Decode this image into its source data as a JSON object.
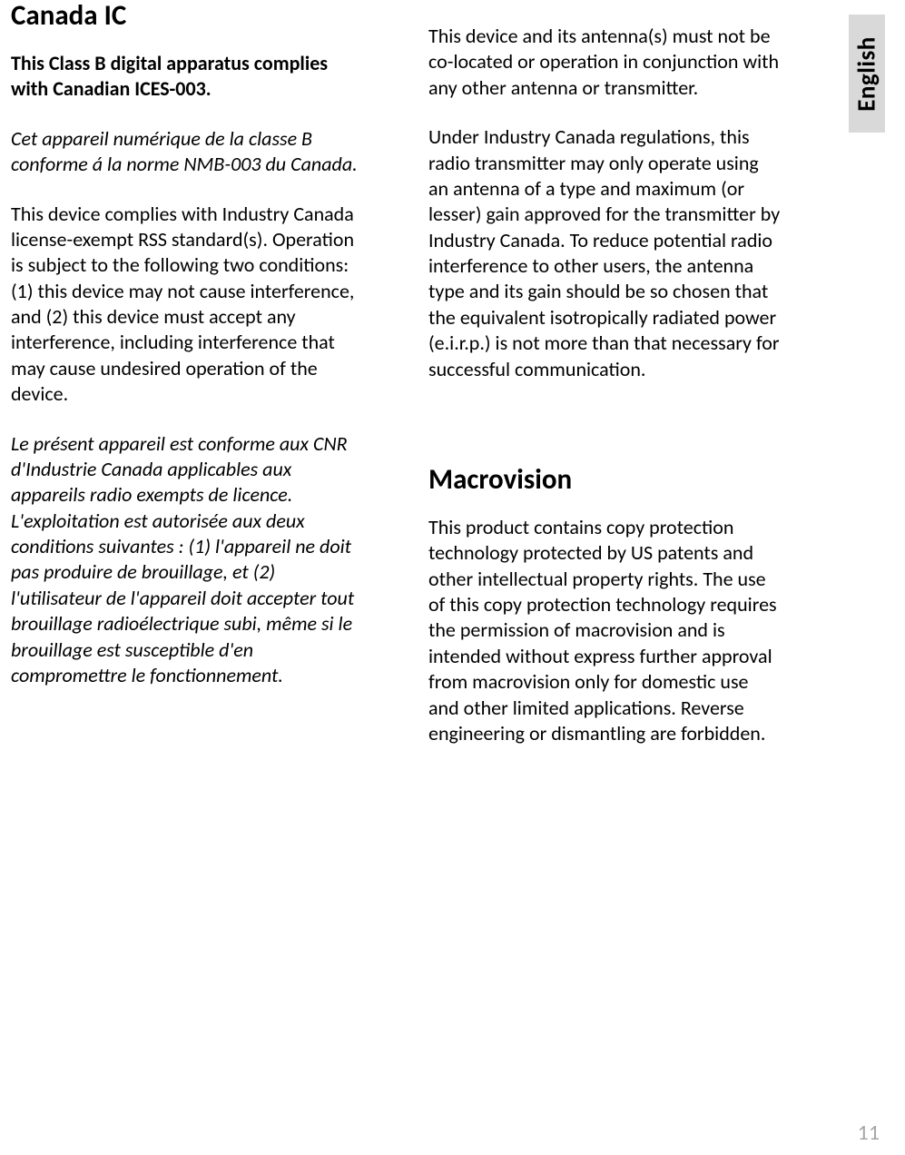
{
  "language_tab": "English",
  "page_number": "11",
  "col1": {
    "heading": "Canada IC",
    "p1": "This Class B digital apparatus complies with Canadian ICES-003.",
    "p2": "Cet appareil numérique de la classe B conforme á la norme NMB-003 du Canada.",
    "p3": "This device complies with Industry Canada license-exempt RSS standard(s). Operation is subject to the following two conditions: (1) this device may not cause interference, and (2) this device must accept any interference, including interference that may cause undesired operation of the device.",
    "p4": "Le présent appareil est conforme aux CNR d'Industrie Canada applicables aux appareils radio exempts de licence. L'exploitation est autorisée aux deux conditions suivantes : (1) l'appareil ne doit pas produire de brouillage, et (2) l'utilisateur de l'appareil doit accepter tout brouillage radioélectrique subi, même si le brouillage est susceptible d'en compromettre le fonctionnement."
  },
  "col2": {
    "p1": "This device and its antenna(s) must not be co-located or operation in conjunction with any other antenna or transmitter.",
    "p2": "Under Industry Canada regulations, this radio transmitter may only operate using an antenna of a type and maximum (or lesser) gain approved for the transmitter by Industry Canada. To reduce potential radio interference to other users, the antenna type and its gain should be so chosen that the equivalent isotropically radiated power (e.i.r.p.) is not more than that necessary for successful communication.",
    "heading2": "Macrovision",
    "p3": "This product contains copy protection technology protected by US patents and other intellectual property rights. The use of this copy protection technology requires the permission of macrovision and is intended without express further approval from macrovision only for domestic use and other limited applications. Reverse engineering or dismantling are forbidden."
  },
  "styles": {
    "page_bg": "#ffffff",
    "text_color": "#000000",
    "tab_bg": "#d9d9d9",
    "pagenum_color": "#a6a6a6",
    "heading_fontsize": 31,
    "body_fontsize": 22,
    "body_lineheight": 1.29
  }
}
